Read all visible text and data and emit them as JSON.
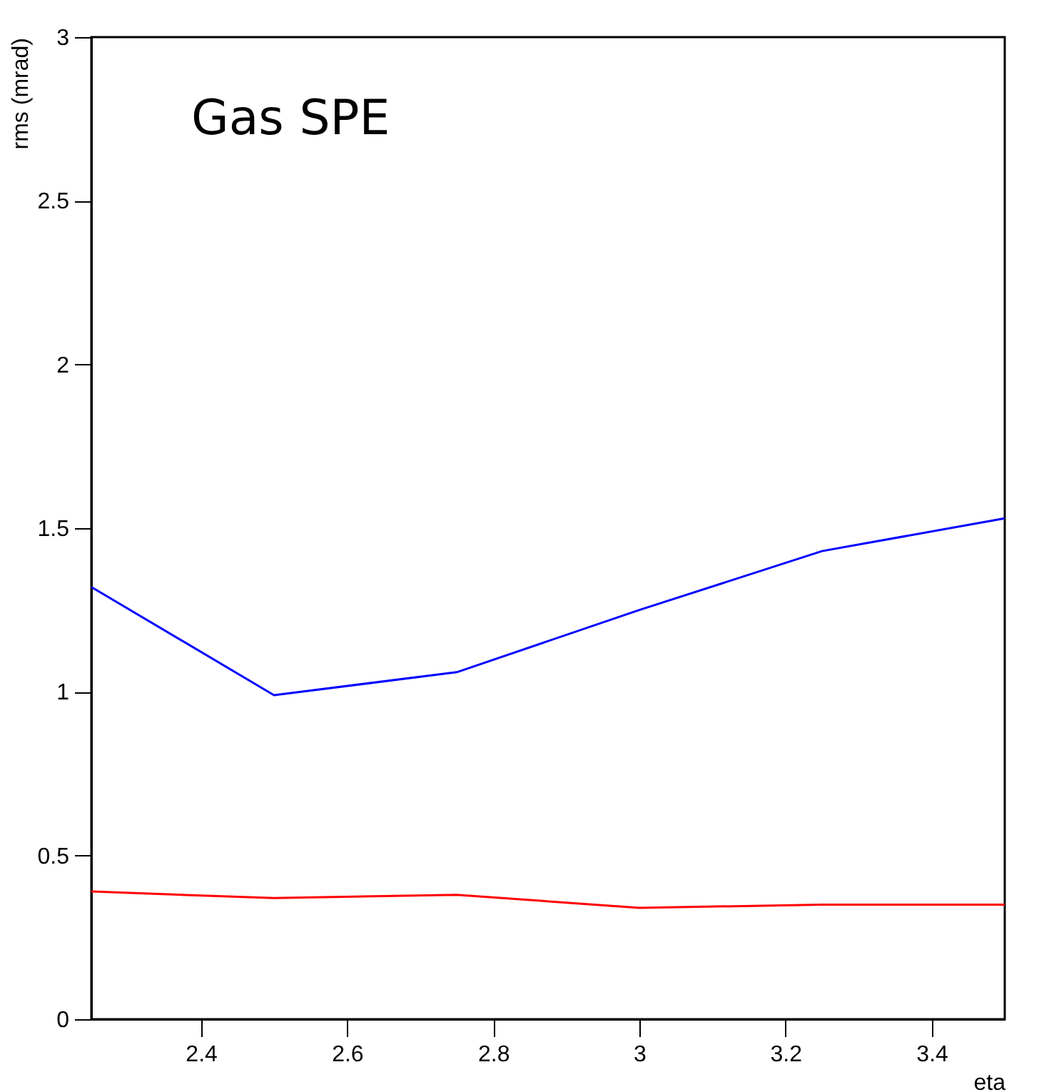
{
  "chart_data": {
    "type": "line",
    "xlabel": "eta",
    "ylabel": "rms (mrad)",
    "annotations": [
      "Gas SPE"
    ],
    "x": [
      2.25,
      2.5,
      2.75,
      3.0,
      3.25,
      3.5
    ],
    "series": [
      {
        "color": "#0000ff",
        "values": [
          1.32,
          0.99,
          1.06,
          1.25,
          1.43,
          1.53
        ]
      },
      {
        "color": "#ff0000",
        "values": [
          0.39,
          0.37,
          0.38,
          0.34,
          0.35,
          0.35
        ]
      }
    ],
    "xlim": [
      2.25,
      3.5
    ],
    "xticks": [
      2.4,
      2.6,
      2.8,
      3,
      3.2,
      3.4
    ],
    "ylim": [
      0,
      3
    ],
    "yticks": [
      0,
      0.5,
      1,
      1.5,
      2,
      2.5,
      3
    ],
    "grid": false,
    "legend": false,
    "marker": "none",
    "line_style": "solid"
  }
}
